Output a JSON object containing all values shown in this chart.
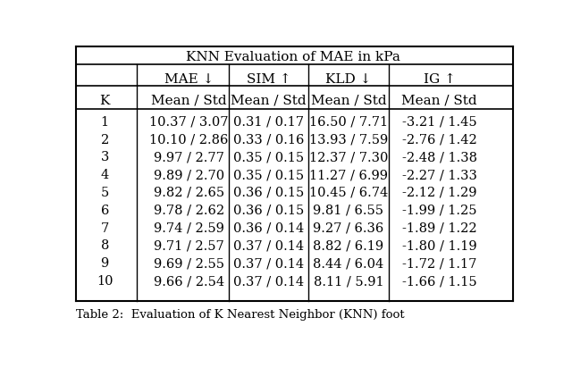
{
  "title": "KNN Evaluation of MAE in kPa",
  "caption": "Table 2:  Evaluation of K Nearest Neighbor (KNN) foot",
  "col_headers": [
    "",
    "MAE ↓",
    "SIM ↑",
    "KLD ↓",
    "IG ↑"
  ],
  "sub_headers": [
    "K",
    "Mean / Std",
    "Mean / Std",
    "Mean / Std",
    "Mean / Std"
  ],
  "rows": [
    [
      "1",
      "10.37 / 3.07",
      "0.31 / 0.17",
      "16.50 / 7.71",
      "-3.21 / 1.45"
    ],
    [
      "2",
      "10.10 / 2.86",
      "0.33 / 0.16",
      "13.93 / 7.59",
      "-2.76 / 1.42"
    ],
    [
      "3",
      "9.97 / 2.77",
      "0.35 / 0.15",
      "12.37 / 7.30",
      "-2.48 / 1.38"
    ],
    [
      "4",
      "9.89 / 2.70",
      "0.35 / 0.15",
      "11.27 / 6.99",
      "-2.27 / 1.33"
    ],
    [
      "5",
      "9.82 / 2.65",
      "0.36 / 0.15",
      "10.45 / 6.74",
      "-2.12 / 1.29"
    ],
    [
      "6",
      "9.78 / 2.62",
      "0.36 / 0.15",
      "9.81 / 6.55",
      "-1.99 / 1.25"
    ],
    [
      "7",
      "9.74 / 2.59",
      "0.36 / 0.14",
      "9.27 / 6.36",
      "-1.89 / 1.22"
    ],
    [
      "8",
      "9.71 / 2.57",
      "0.37 / 0.14",
      "8.82 / 6.19",
      "-1.80 / 1.19"
    ],
    [
      "9",
      "9.69 / 2.55",
      "0.37 / 0.14",
      "8.44 / 6.04",
      "-1.72 / 1.17"
    ],
    [
      "10",
      "9.66 / 2.54",
      "0.37 / 0.14",
      "8.11 / 5.91",
      "-1.66 / 1.15"
    ]
  ],
  "bg_color": "white",
  "text_color": "black",
  "figsize": [
    6.4,
    4.12
  ],
  "dpi": 100
}
